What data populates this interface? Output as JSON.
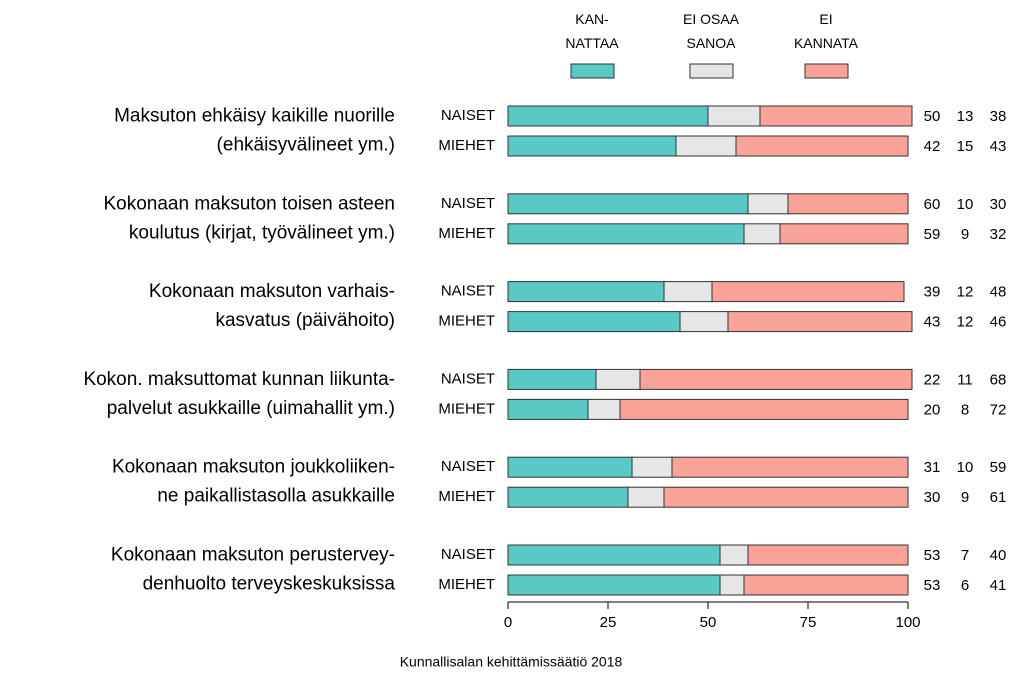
{
  "chart_data": {
    "type": "stacked-bar-horizontal",
    "groups": [
      "Maksuton ehkäisy kaikille nuorille\n(ehkäisyvälineet ym.)",
      "Kokonaan maksuton toisen asteen\nkoulutus (kirjat, työvälineet ym.)",
      "Kokonaan maksuton varhais-\nkasvatus (päivähoito)",
      "Kokon. maksuttomat kunnan liikunta-\npalvelut asukkaille (uimahallit ym.)",
      "Kokonaan maksuton joukkoliiken-\nne paikallistasolla asukkaille",
      "Kokonaan maksuton perustervey-\ndenhuolto terveyskeskuksissa"
    ],
    "subgroups": [
      "NAISET",
      "MIEHET"
    ],
    "series": [
      {
        "name": "KAN-\nNATTAA",
        "color": "#58c9c4",
        "values": [
          50,
          42,
          60,
          59,
          39,
          43,
          22,
          20,
          31,
          30,
          53,
          53
        ]
      },
      {
        "name": "EI OSAA\nSANOA",
        "color": "#e6e6e6",
        "values": [
          13,
          15,
          10,
          9,
          12,
          12,
          11,
          8,
          10,
          9,
          7,
          6
        ]
      },
      {
        "name": "EI\nKANNATA",
        "color": "#f9a298",
        "values": [
          38,
          43,
          30,
          32,
          48,
          46,
          68,
          72,
          59,
          61,
          40,
          41
        ]
      }
    ],
    "xlim": [
      0,
      100
    ],
    "xticks": [
      0,
      25,
      50,
      75,
      100
    ],
    "source": "Kunnallisalan kehittämissäätiö 2018"
  }
}
